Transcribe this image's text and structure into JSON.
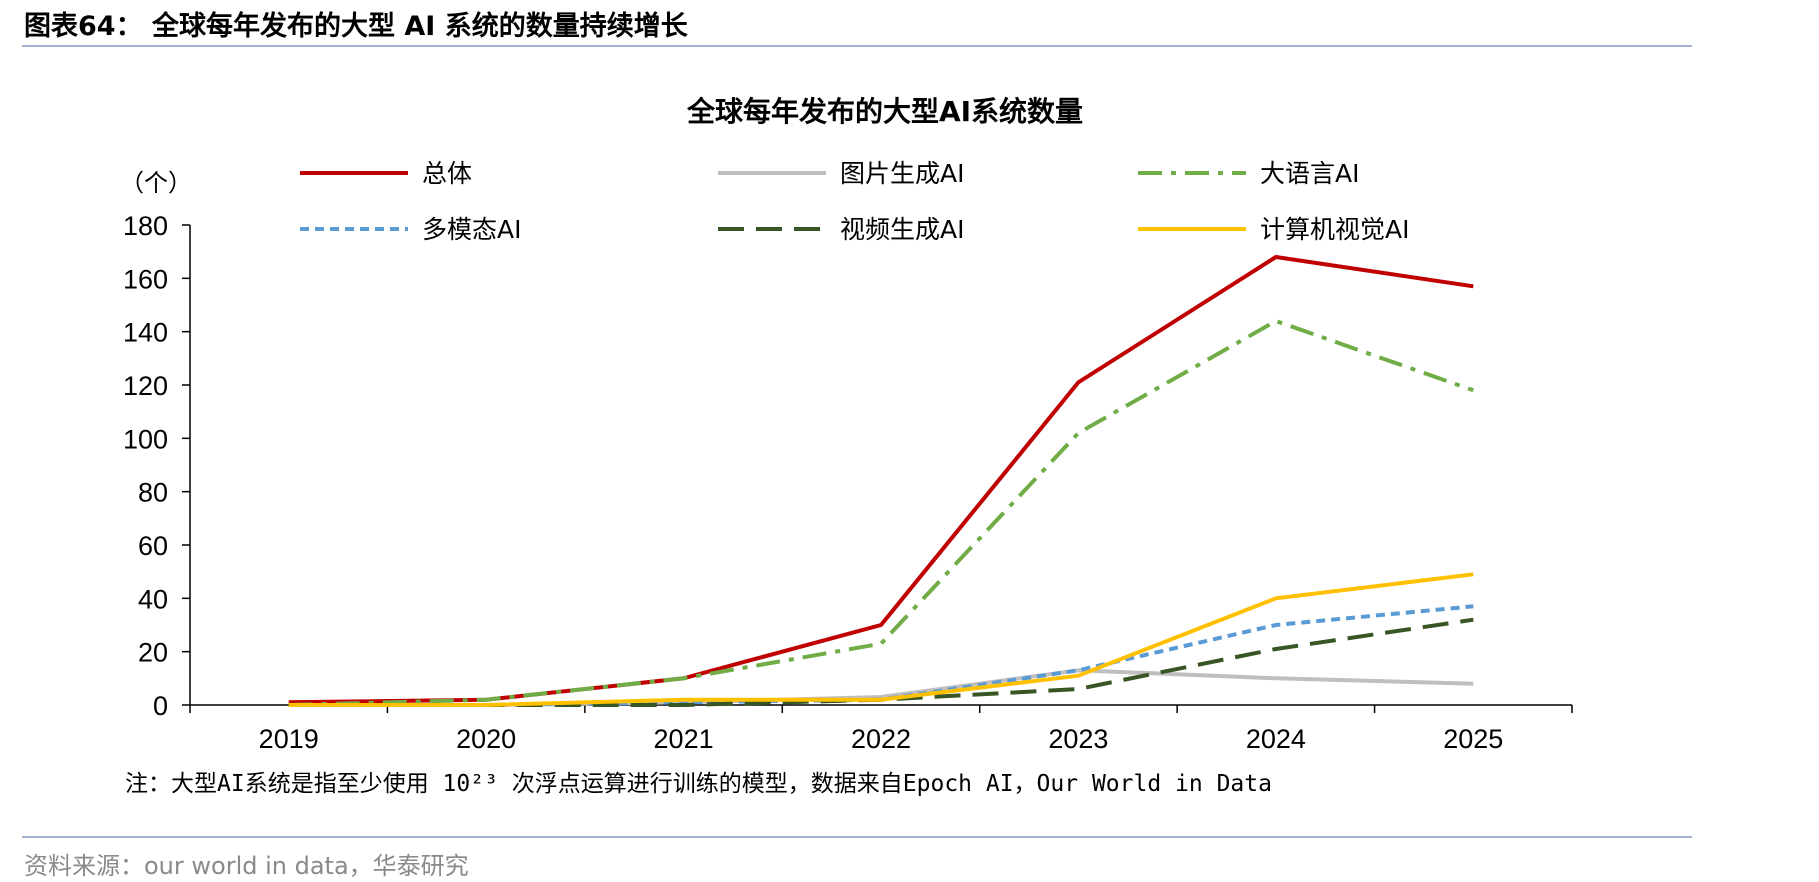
{
  "header": {
    "figure_label": "图表64：",
    "figure_title": "全球每年发布的大型 AI 系统的数量持续增长"
  },
  "source": "资料来源：our world in data，华泰研究",
  "note": "注：大型AI系统是指至少使用 10²³ 次浮点运算进行训练的模型，数据来自Epoch AI，Our World in Data",
  "colors": {
    "rule": "#a3b3cf",
    "total": "#c00000",
    "image_gen": "#bfbfbf",
    "llm": "#70ad47",
    "multimodal": "#5b9bd5",
    "video_gen": "#375623",
    "cv": "#ffc000"
  },
  "chart_data": {
    "type": "line",
    "title": "全球每年发布的大型AI系统数量",
    "ylabel": "（个）",
    "xlabel": "",
    "x": [
      "2019",
      "2020",
      "2021",
      "2022",
      "2023",
      "2024",
      "2025"
    ],
    "yticks": [
      "0",
      "20",
      "40",
      "60",
      "80",
      "100",
      "120",
      "140",
      "160",
      "180"
    ],
    "ylim": [
      0,
      180
    ],
    "grid": false,
    "legend_position": "top",
    "series": [
      {
        "name": "总体",
        "values": [
          1,
          2,
          10,
          30,
          121,
          168,
          157
        ],
        "color": "#c00000",
        "style": "solid"
      },
      {
        "name": "图片生成AI",
        "values": [
          0,
          0,
          1,
          3,
          13,
          10,
          8
        ],
        "color": "#bfbfbf",
        "style": "solid"
      },
      {
        "name": "大语言AI",
        "values": [
          0,
          2,
          10,
          23,
          102,
          144,
          118
        ],
        "color": "#70ad47",
        "style": "dashdot"
      },
      {
        "name": "多模态AI",
        "values": [
          0,
          0,
          1,
          2,
          13,
          30,
          37
        ],
        "color": "#5b9bd5",
        "style": "dotted"
      },
      {
        "name": "视频生成AI",
        "values": [
          0,
          0,
          0,
          2,
          6,
          21,
          32
        ],
        "color": "#375623",
        "style": "dashed"
      },
      {
        "name": "计算机视觉AI",
        "values": [
          0,
          0,
          2,
          2,
          11,
          40,
          49
        ],
        "color": "#ffc000",
        "style": "solid"
      }
    ]
  }
}
